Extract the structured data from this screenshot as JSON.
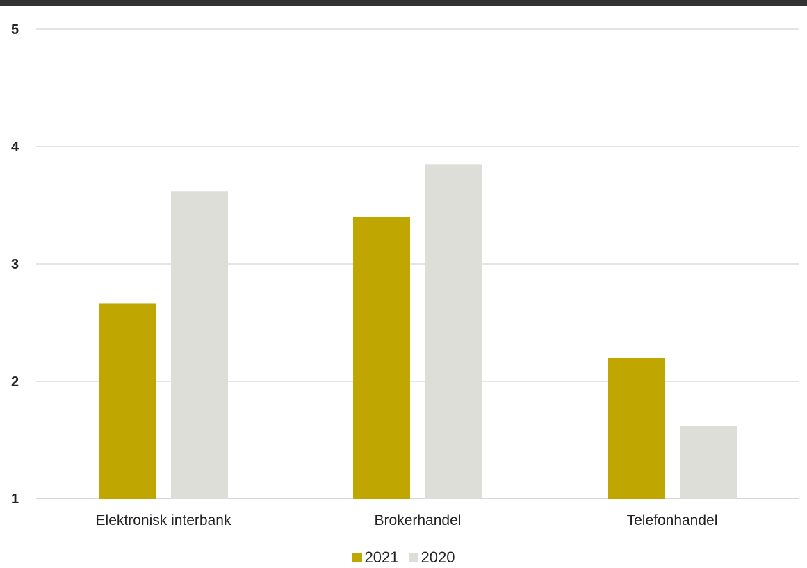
{
  "colors": {
    "series_2021": "#BFA600",
    "series_2020": "#DEDED8",
    "grid": "#C8C8C8",
    "top_bar": "#333333"
  },
  "chart_data": {
    "type": "bar",
    "categories": [
      "Elektronisk interbank",
      "Brokerhandel",
      "Telefonhandel"
    ],
    "series": [
      {
        "name": "2021",
        "values": [
          2.66,
          3.4,
          2.2
        ]
      },
      {
        "name": "2020",
        "values": [
          3.62,
          3.85,
          1.62
        ]
      }
    ],
    "yticks": [
      "1",
      "2",
      "3",
      "4",
      "5"
    ],
    "ylim": [
      1,
      5
    ],
    "grid": true,
    "legend_position": "bottom-center"
  }
}
